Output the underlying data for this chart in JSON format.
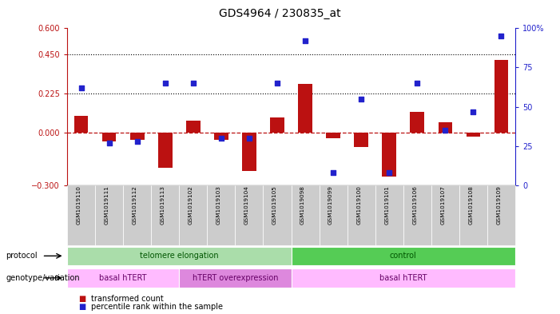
{
  "title": "GDS4964 / 230835_at",
  "samples": [
    "GSM1019110",
    "GSM1019111",
    "GSM1019112",
    "GSM1019113",
    "GSM1019102",
    "GSM1019103",
    "GSM1019104",
    "GSM1019105",
    "GSM1019098",
    "GSM1019099",
    "GSM1019100",
    "GSM1019101",
    "GSM1019106",
    "GSM1019107",
    "GSM1019108",
    "GSM1019109"
  ],
  "transformed_count": [
    0.1,
    -0.05,
    -0.04,
    -0.2,
    0.07,
    -0.04,
    -0.22,
    0.09,
    0.28,
    -0.03,
    -0.08,
    -0.25,
    0.12,
    0.06,
    -0.02,
    0.42
  ],
  "percentile_rank": [
    62,
    27,
    28,
    65,
    65,
    30,
    30,
    65,
    92,
    8,
    55,
    8,
    65,
    35,
    47,
    95
  ],
  "ylim_left": [
    -0.3,
    0.6
  ],
  "ylim_right": [
    0,
    100
  ],
  "yticks_left": [
    -0.3,
    0,
    0.225,
    0.45,
    0.6
  ],
  "yticks_right": [
    0,
    25,
    50,
    75,
    100
  ],
  "hline_dotted": [
    0.45,
    0.225
  ],
  "bar_color": "#bb1111",
  "dot_color": "#2222cc",
  "protocol_labels": [
    {
      "text": "telomere elongation",
      "start": 0,
      "end": 8,
      "color": "#aaddaa"
    },
    {
      "text": "control",
      "start": 8,
      "end": 16,
      "color": "#55cc55"
    }
  ],
  "genotype_labels": [
    {
      "text": "basal hTERT",
      "start": 0,
      "end": 4,
      "color": "#ffbbff"
    },
    {
      "text": "hTERT overexpression",
      "start": 4,
      "end": 8,
      "color": "#dd88dd"
    },
    {
      "text": "basal hTERT",
      "start": 8,
      "end": 16,
      "color": "#ffbbff"
    }
  ],
  "legend_items": [
    {
      "label": "transformed count",
      "color": "#bb1111"
    },
    {
      "label": "percentile rank within the sample",
      "color": "#2222cc"
    }
  ],
  "protocol_row_label": "protocol",
  "genotype_row_label": "genotype/variation"
}
